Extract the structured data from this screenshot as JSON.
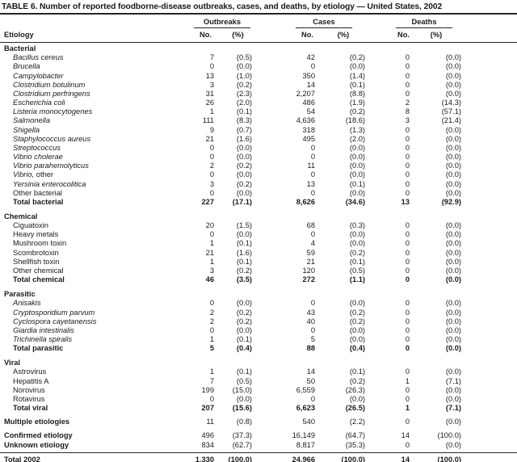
{
  "title": "TABLE 6. Number of reported foodborne-disease outbreaks, cases, and deaths, by etiology — United States, 2002",
  "colors": {
    "text": "#1b1b1b",
    "rule": "#262626",
    "background": "#ffffff"
  },
  "header": {
    "etiology": "Etiology",
    "groups": [
      {
        "label": "Outbreaks",
        "sub": [
          "No.",
          "(%)"
        ]
      },
      {
        "label": "Cases",
        "sub": [
          "No.",
          "(%)"
        ]
      },
      {
        "label": "Deaths",
        "sub": [
          "No.",
          "(%)"
        ]
      }
    ]
  },
  "sections": [
    {
      "name": "Bacterial",
      "rows": [
        {
          "label": "Bacillus cereus",
          "italic": true,
          "values": [
            "7",
            "(0.5)",
            "42",
            "(0.2)",
            "0",
            "(0.0)"
          ]
        },
        {
          "label": "Brucella",
          "italic": true,
          "values": [
            "0",
            "(0.0)",
            "0",
            "(0.0)",
            "0",
            "(0.0)"
          ]
        },
        {
          "label": "Campylobacter",
          "italic": true,
          "values": [
            "13",
            "(1.0)",
            "350",
            "(1.4)",
            "0",
            "(0.0)"
          ]
        },
        {
          "label": "Clostridium botulinum",
          "italic": true,
          "values": [
            "3",
            "(0.2)",
            "14",
            "(0.1)",
            "0",
            "(0.0)"
          ]
        },
        {
          "label": "Clostridium perfringens",
          "italic": true,
          "values": [
            "31",
            "(2.3)",
            "2,207",
            "(8.8)",
            "0",
            "(0.0)"
          ]
        },
        {
          "label": "Escherichia coli",
          "italic": true,
          "values": [
            "26",
            "(2.0)",
            "486",
            "(1.9)",
            "2",
            "(14.3)"
          ]
        },
        {
          "label": "Listeria monocytogenes",
          "italic": true,
          "values": [
            "1",
            "(0.1)",
            "54",
            "(0.2)",
            "8",
            "(57.1)"
          ]
        },
        {
          "label": "Salmonella",
          "italic": true,
          "values": [
            "111",
            "(8.3)",
            "4,636",
            "(18.6)",
            "3",
            "(21.4)"
          ]
        },
        {
          "label": "Shigella",
          "italic": true,
          "values": [
            "9",
            "(0.7)",
            "318",
            "(1.3)",
            "0",
            "(0.0)"
          ]
        },
        {
          "label": "Staphylococcus aureus",
          "italic": true,
          "values": [
            "21",
            "(1.6)",
            "495",
            "(2.0)",
            "0",
            "(0.0)"
          ]
        },
        {
          "label": "Streptococcus",
          "italic": true,
          "values": [
            "0",
            "(0.0)",
            "0",
            "(0.0)",
            "0",
            "(0.0)"
          ]
        },
        {
          "label": "Vibrio cholerae",
          "italic": true,
          "values": [
            "0",
            "(0.0)",
            "0",
            "(0.0)",
            "0",
            "(0.0)"
          ]
        },
        {
          "label": "Vibrio parahemolyticus",
          "italic": true,
          "values": [
            "2",
            "(0.2)",
            "11",
            "(0.0)",
            "0",
            "(0.0)"
          ]
        },
        {
          "label": "Vibrio,",
          "label_suffix": " other",
          "italic": true,
          "values": [
            "0",
            "(0.0)",
            "0",
            "(0.0)",
            "0",
            "(0.0)"
          ]
        },
        {
          "label": "Yersinia enterocolitica",
          "italic": true,
          "values": [
            "3",
            "(0.2)",
            "13",
            "(0.1)",
            "0",
            "(0.0)"
          ]
        },
        {
          "label": "Other bacterial",
          "values": [
            "0",
            "(0.0)",
            "0",
            "(0.0)",
            "0",
            "(0.0)"
          ]
        },
        {
          "label": "Total bacterial",
          "bold": true,
          "values": [
            "227",
            "(17.1)",
            "8,626",
            "(34.6)",
            "13",
            "(92.9)"
          ]
        }
      ]
    },
    {
      "name": "Chemical",
      "rows": [
        {
          "label": "Ciguatoxin",
          "values": [
            "20",
            "(1.5)",
            "68",
            "(0.3)",
            "0",
            "(0.0)"
          ]
        },
        {
          "label": "Heavy metals",
          "values": [
            "0",
            "(0.0)",
            "0",
            "(0.0)",
            "0",
            "(0.0)"
          ]
        },
        {
          "label": "Mushroom toxin",
          "values": [
            "1",
            "(0.1)",
            "4",
            "(0.0)",
            "0",
            "(0.0)"
          ]
        },
        {
          "label": "Scombrotoxin",
          "values": [
            "21",
            "(1.6)",
            "59",
            "(0.2)",
            "0",
            "(0.0)"
          ]
        },
        {
          "label": "Shellfish toxin",
          "values": [
            "1",
            "(0.1)",
            "21",
            "(0.1)",
            "0",
            "(0.0)"
          ]
        },
        {
          "label": "Other chemical",
          "values": [
            "3",
            "(0.2)",
            "120",
            "(0.5)",
            "0",
            "(0.0)"
          ]
        },
        {
          "label": "Total chemical",
          "bold": true,
          "values": [
            "46",
            "(3.5)",
            "272",
            "(1.1)",
            "0",
            "(0.0)"
          ]
        }
      ]
    },
    {
      "name": "Parasitic",
      "rows": [
        {
          "label": "Anisakis",
          "italic": true,
          "values": [
            "0",
            "(0.0)",
            "0",
            "(0.0)",
            "0",
            "(0.0)"
          ]
        },
        {
          "label": "Cryptosporidium parvum",
          "italic": true,
          "values": [
            "2",
            "(0.2)",
            "43",
            "(0.2)",
            "0",
            "(0.0)"
          ]
        },
        {
          "label": "Cyclospora cayetanensis",
          "italic": true,
          "values": [
            "2",
            "(0.2)",
            "40",
            "(0.2)",
            "0",
            "(0.0)"
          ]
        },
        {
          "label": "Giardia intestinalis",
          "italic": true,
          "values": [
            "0",
            "(0.0)",
            "0",
            "(0.0)",
            "0",
            "(0.0)"
          ]
        },
        {
          "label": "Trichinella spiralis",
          "italic": true,
          "values": [
            "1",
            "(0.1)",
            "5",
            "(0.0)",
            "0",
            "(0.0)"
          ]
        },
        {
          "label": "Total parasitic",
          "bold": true,
          "values": [
            "5",
            "(0.4)",
            "88",
            "(0.4)",
            "0",
            "(0.0)"
          ]
        }
      ]
    },
    {
      "name": "Viral",
      "rows": [
        {
          "label": "Astrovirus",
          "values": [
            "1",
            "(0.1)",
            "14",
            "(0.1)",
            "0",
            "(0.0)"
          ]
        },
        {
          "label": "Hepatitis A",
          "values": [
            "7",
            "(0.5)",
            "50",
            "(0.2)",
            "1",
            "(7.1)"
          ]
        },
        {
          "label": "Norovirus",
          "values": [
            "199",
            "(15.0)",
            "6,559",
            "(26.3)",
            "0",
            "(0.0)"
          ]
        },
        {
          "label": "Rotavirus",
          "values": [
            "0",
            "(0.0)",
            "0",
            "(0.0)",
            "0",
            "(0.0)"
          ]
        },
        {
          "label": "Total viral",
          "bold": true,
          "values": [
            "207",
            "(15.6)",
            "6,623",
            "(26.5)",
            "1",
            "(7.1)"
          ]
        }
      ]
    }
  ],
  "summary_rows": [
    {
      "label": "Multiple etiologies",
      "bold_label": true,
      "gap_above": true,
      "values": [
        "11",
        "(0.8)",
        "540",
        "(2.2)",
        "0",
        "(0.0)"
      ]
    },
    {
      "label": "Confirmed etiology",
      "bold_label": true,
      "gap_above": true,
      "values": [
        "496",
        "(37.3)",
        "16,149",
        "(64.7)",
        "14",
        "(100.0)"
      ]
    },
    {
      "label": "Unknown etiology",
      "bold_label": true,
      "values": [
        "834",
        "(62.7)",
        "8,817",
        "(35.3)",
        "0",
        "(0.0)"
      ]
    },
    {
      "label": "Total 2002",
      "bold": true,
      "rule_above": true,
      "values": [
        "1,330",
        "(100.0)",
        "24,966",
        "(100.0)",
        "14",
        "(100.0)"
      ]
    }
  ]
}
